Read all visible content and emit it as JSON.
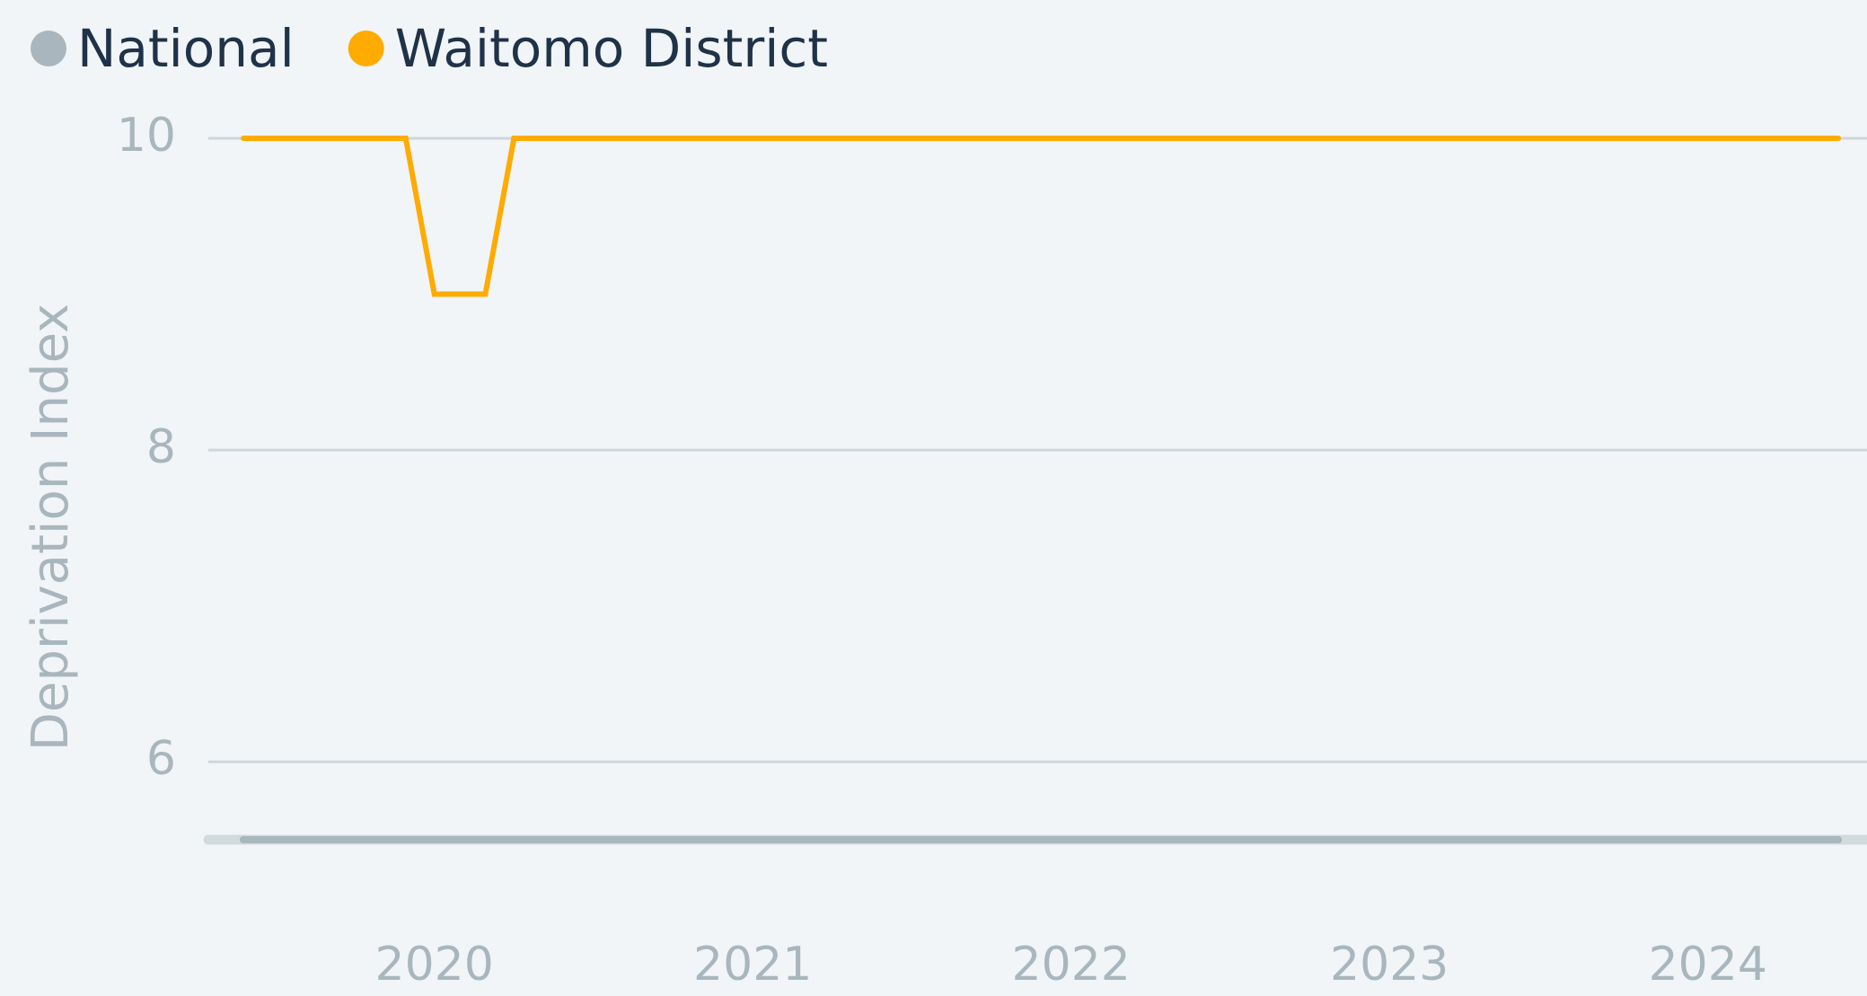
{
  "chart_data": {
    "type": "line",
    "y_axis_label": "Deprivation Index",
    "series": [
      {
        "name": "National",
        "color": "#a9b6bd",
        "x": [
          2019.4,
          2024.41
        ],
        "values": [
          5.5,
          5.5
        ]
      },
      {
        "name": "Waitomo District",
        "color": "#ffab00",
        "x": [
          2019.4,
          2019.91,
          2020.0,
          2020.16,
          2020.25,
          2024.41
        ],
        "values": [
          10,
          10,
          9,
          9,
          10,
          10
        ]
      }
    ],
    "xlim": [
      2019.29,
      2024.5
    ],
    "xticks": [
      2020,
      2021,
      2022,
      2023,
      2024
    ],
    "ylim": [
      5.5,
      10
    ],
    "yticks": [
      6,
      8,
      10
    ],
    "grid": true,
    "legend": "top-left"
  }
}
